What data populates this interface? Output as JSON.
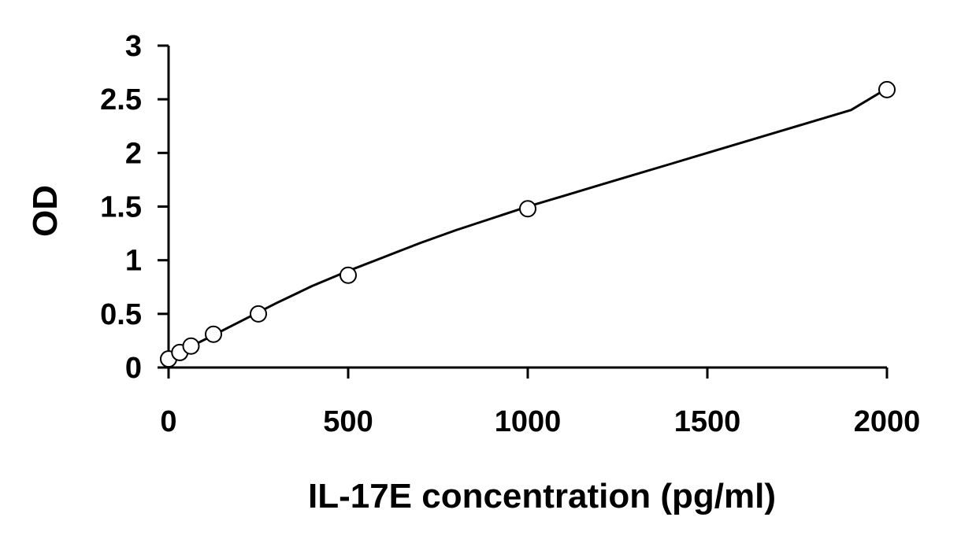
{
  "chart_data": {
    "type": "scatter",
    "title": "",
    "xlabel": "IL-17E concentration (pg/ml)",
    "ylabel": "OD",
    "xlim": [
      0,
      2000
    ],
    "ylim": [
      0,
      3
    ],
    "x_ticks": [
      0,
      500,
      1000,
      1500,
      2000
    ],
    "y_ticks": [
      0,
      0.5,
      1,
      1.5,
      2,
      2.5,
      3
    ],
    "x_tick_labels": [
      "0",
      "500",
      "1000",
      "1500",
      "2000"
    ],
    "y_tick_labels": [
      "0",
      "0.5",
      "1",
      "1.5",
      "2",
      "2.5",
      "3"
    ],
    "grid": false,
    "legend": "none",
    "marker": "open-circle",
    "series": [
      {
        "x": [
          0,
          31.25,
          62.5,
          125,
          250,
          500,
          1000,
          2000
        ],
        "y": [
          0.08,
          0.14,
          0.2,
          0.31,
          0.5,
          0.86,
          1.48,
          2.59
        ]
      }
    ],
    "fit_curve": {
      "x": [
        0,
        100,
        200,
        300,
        400,
        500,
        600,
        700,
        800,
        900,
        1000,
        1100,
        1200,
        1300,
        1400,
        1500,
        1600,
        1700,
        1800,
        1900,
        2000
      ],
      "y": [
        0.09,
        0.26,
        0.43,
        0.6,
        0.76,
        0.9,
        1.03,
        1.16,
        1.28,
        1.39,
        1.5,
        1.6,
        1.7,
        1.8,
        1.9,
        2.0,
        2.1,
        2.2,
        2.3,
        2.4,
        2.6
      ]
    }
  }
}
